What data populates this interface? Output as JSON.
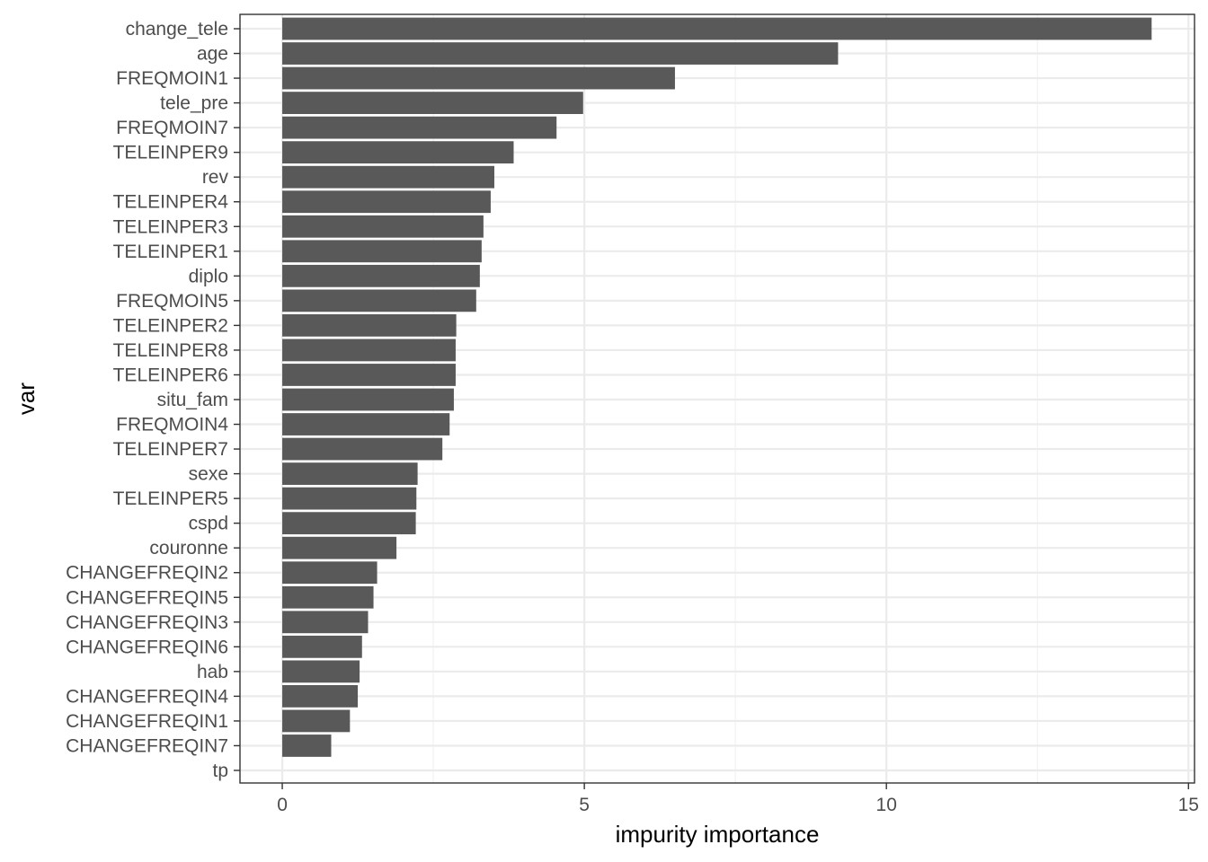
{
  "chart_data": {
    "type": "bar",
    "orientation": "horizontal",
    "xlabel": "impurity importance",
    "ylabel": "var",
    "xlim": [
      -0.7,
      15.1
    ],
    "xticks": [
      0,
      5,
      10,
      15
    ],
    "grid": true,
    "legend": "none",
    "bar_color": "#595959",
    "categories": [
      "change_tele",
      "age",
      "FREQMOIN1",
      "tele_pre",
      "FREQMOIN7",
      "TELEINPER9",
      "rev",
      "TELEINPER4",
      "TELEINPER3",
      "TELEINPER1",
      "diplo",
      "FREQMOIN5",
      "TELEINPER2",
      "TELEINPER8",
      "TELEINPER6",
      "situ_fam",
      "FREQMOIN4",
      "TELEINPER7",
      "sexe",
      "TELEINPER5",
      "cspd",
      "couronne",
      "CHANGEFREQIN2",
      "CHANGEFREQIN5",
      "CHANGEFREQIN3",
      "CHANGEFREQIN6",
      "hab",
      "CHANGEFREQIN4",
      "CHANGEFREQIN1",
      "CHANGEFREQIN7",
      "tp"
    ],
    "values": [
      14.39,
      9.2,
      6.5,
      4.98,
      4.54,
      3.83,
      3.51,
      3.45,
      3.33,
      3.3,
      3.27,
      3.21,
      2.88,
      2.87,
      2.87,
      2.84,
      2.77,
      2.65,
      2.24,
      2.22,
      2.21,
      1.89,
      1.57,
      1.51,
      1.42,
      1.32,
      1.28,
      1.25,
      1.12,
      0.81,
      0.0
    ]
  }
}
